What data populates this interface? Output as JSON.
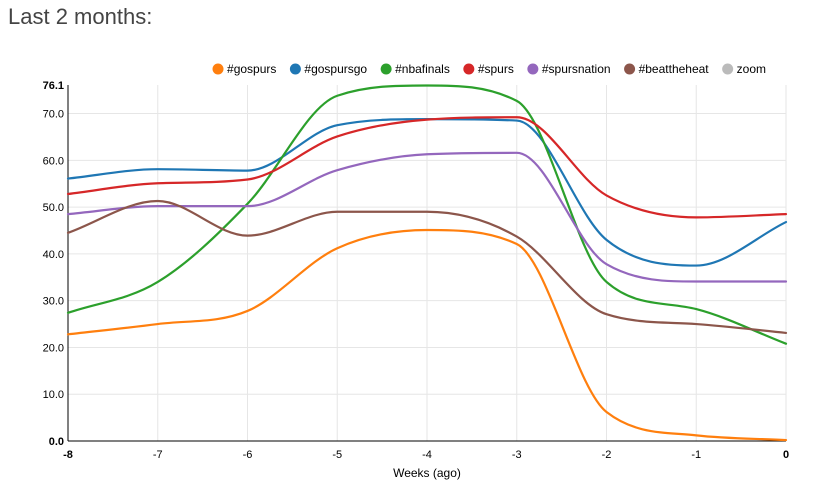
{
  "page": {
    "title": "Last 2 months:"
  },
  "legend": [
    {
      "name": "#gospurs",
      "color": "#ff7f0e"
    },
    {
      "name": "#gospursgo",
      "color": "#1f77b4"
    },
    {
      "name": "#nbafinals",
      "color": "#2ca02c"
    },
    {
      "name": "#spurs",
      "color": "#d62728"
    },
    {
      "name": "#spursnation",
      "color": "#9467bd"
    },
    {
      "name": "#beattheheat",
      "color": "#8c564b"
    },
    {
      "name": "zoom",
      "color": "#bbbbbb"
    }
  ],
  "chart_data": {
    "type": "line",
    "xlabel": "Weeks (ago)",
    "ylabel": "",
    "xlim": [
      -8,
      0
    ],
    "ylim": [
      0,
      76.1
    ],
    "x": [
      -8,
      -7,
      -6,
      -5,
      -4,
      -3,
      -2,
      -1,
      0
    ],
    "x_ticks": [
      "-8",
      "-7",
      "-6",
      "-5",
      "-4",
      "-3",
      "-2",
      "-1",
      "0"
    ],
    "y_ticks": [
      0,
      10,
      20,
      30,
      40,
      50,
      60,
      70
    ],
    "y_tick_labels": [
      "0.0",
      "10.0",
      "20.0",
      "30.0",
      "40.0",
      "50.0",
      "60.0",
      "70.0"
    ],
    "y_max_label": "76.1",
    "grid": true,
    "legend_position": "top-right",
    "series": [
      {
        "name": "#gospurs",
        "color": "#ff7f0e",
        "values": [
          22.8,
          25.0,
          27.8,
          41.2,
          45.1,
          42.1,
          6.2,
          1.2,
          0.2
        ]
      },
      {
        "name": "#gospursgo",
        "color": "#1f77b4",
        "values": [
          56.1,
          58.1,
          57.8,
          67.5,
          68.8,
          68.5,
          43.0,
          37.5,
          46.8
        ]
      },
      {
        "name": "#nbafinals",
        "color": "#2ca02c",
        "values": [
          27.4,
          34.0,
          50.7,
          73.8,
          76.0,
          72.7,
          34.0,
          28.2,
          20.8
        ]
      },
      {
        "name": "#spurs",
        "color": "#d62728",
        "values": [
          52.8,
          55.1,
          55.9,
          65.1,
          68.7,
          69.2,
          52.5,
          47.8,
          48.5
        ]
      },
      {
        "name": "#spursnation",
        "color": "#9467bd",
        "values": [
          48.5,
          50.2,
          50.2,
          57.9,
          61.3,
          61.6,
          37.8,
          34.1,
          34.1
        ]
      },
      {
        "name": "#beattheheat",
        "color": "#8c564b",
        "values": [
          44.5,
          51.3,
          43.9,
          49.0,
          49.0,
          43.7,
          27.1,
          25.0,
          23.1
        ]
      }
    ]
  }
}
